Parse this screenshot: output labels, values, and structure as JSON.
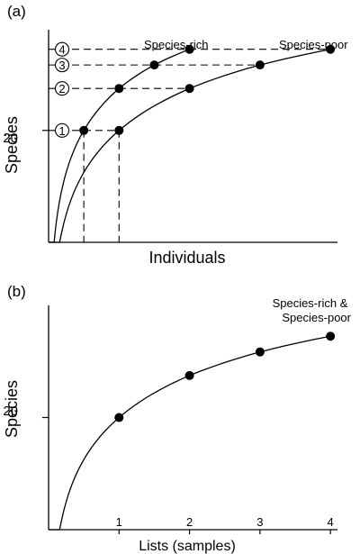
{
  "chart_data": [
    {
      "panel_label": "(a)",
      "type": "line",
      "xlabel": "Individuals",
      "ylabel": "Species",
      "y_tick_label": "20",
      "x_axis_ticks": false,
      "grid": false,
      "legend": "none",
      "series": [
        {
          "name": "Species-rich",
          "x": [
            0.5,
            1,
            1.5,
            2
          ],
          "y": [
            20,
            27.5,
            31.7,
            34.5
          ]
        },
        {
          "name": "Species-poor",
          "x": [
            1,
            2,
            3,
            4
          ],
          "y": [
            20,
            27.5,
            31.7,
            34.5
          ]
        }
      ],
      "circled_levels": [
        {
          "label": "1",
          "y": 20
        },
        {
          "label": "2",
          "y": 27.5
        },
        {
          "label": "3",
          "y": 31.7
        },
        {
          "label": "4",
          "y": 34.5
        }
      ],
      "dashed_verticals_x": [
        0.5,
        1
      ],
      "xlim": [
        0,
        4.1
      ],
      "ylim": [
        0,
        38
      ]
    },
    {
      "panel_label": "(b)",
      "type": "line",
      "xlabel": "Lists (samples)",
      "ylabel": "Species",
      "y_tick_label": "20",
      "x_ticks": [
        1,
        2,
        3,
        4
      ],
      "grid": false,
      "legend": "none",
      "series": [
        {
          "name": "Species-rich & Species-poor",
          "x": [
            1,
            2,
            3,
            4
          ],
          "y": [
            20,
            27.5,
            31.7,
            34.5
          ]
        }
      ],
      "xlim": [
        0,
        4.1
      ],
      "ylim": [
        0,
        40
      ]
    }
  ]
}
